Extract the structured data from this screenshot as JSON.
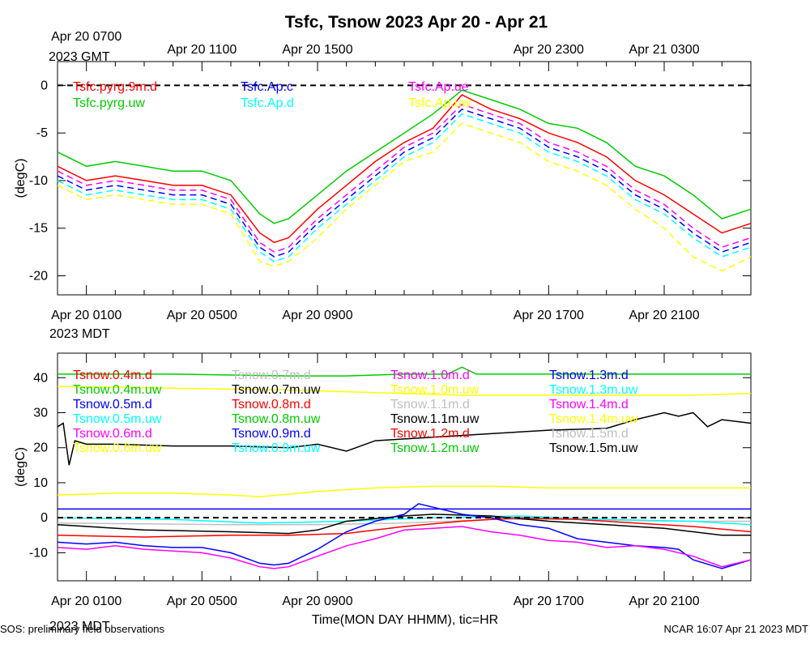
{
  "chart_data": {
    "type": "line",
    "title": "Tsfc, Tsnow 2023 Apr 20 - Apr 21",
    "xlabel": "Time(MON DAY HHMM), tic=HR",
    "footer_left": "SOS: preliminary field observations",
    "footer_right": "NCAR 16:07 Apr 21 2023 MDT",
    "gmt_zone_label": "2023 GMT",
    "mdt_zone_label": "2023 MDT",
    "gmt_ticks": [
      "Apr 20 0700",
      "Apr 20 1100",
      "Apr 20 1500",
      "Apr 20 2300",
      "Apr 21 0300"
    ],
    "mdt_ticks": [
      "Apr 20 0100",
      "Apr 20 0500",
      "Apr 20 0900",
      "Apr 20 1700",
      "Apr 20 2100"
    ],
    "x_hours": [
      0,
      4,
      8,
      16,
      20
    ],
    "xlim_hours": [
      -1,
      23
    ],
    "panels": [
      {
        "ylabel": "(degC)",
        "ylim": [
          -22,
          2.5
        ],
        "yticks": [
          0,
          -5,
          -10,
          -15,
          -20
        ],
        "ref_line": 0,
        "legend": [
          {
            "label": "Tsfc.pyrg.9m.d",
            "color": "#ff0000"
          },
          {
            "label": "Tsfc.pyrg.uw",
            "color": "#00cc00"
          },
          {
            "label": "Tsfc.Ap.c",
            "color": "#0000ff"
          },
          {
            "label": "Tsfc.Ap.d",
            "color": "#00ffff"
          },
          {
            "label": "Tsfc.Ap.ue",
            "color": "#ff00ff"
          },
          {
            "label": "Tsfc.Ap.uw",
            "color": "#ffff00"
          }
        ],
        "series": [
          {
            "name": "Tsfc.pyrg.uw",
            "color": "#00cc00",
            "dash": false,
            "x": [
              -1,
              0,
              1,
              2,
              3,
              4,
              5,
              6,
              6.5,
              7,
              8,
              9,
              10,
              11,
              12,
              13,
              14,
              15,
              16,
              17,
              18,
              19,
              20,
              21,
              22,
              23
            ],
            "y": [
              -7,
              -8.5,
              -8,
              -8.5,
              -9,
              -9,
              -10,
              -13.5,
              -14.5,
              -14,
              -11.5,
              -9,
              -7,
              -5,
              -3,
              -0.5,
              -1.5,
              -2.5,
              -4,
              -4.5,
              -6,
              -8.5,
              -9.5,
              -11.5,
              -14,
              -13
            ]
          },
          {
            "name": "Tsfc.pyrg.9m.d",
            "color": "#ff0000",
            "dash": false,
            "x": [
              -1,
              0,
              1,
              2,
              3,
              4,
              5,
              6,
              6.5,
              7,
              8,
              9,
              10,
              11,
              12,
              13,
              14,
              15,
              16,
              17,
              18,
              19,
              20,
              21,
              22,
              23
            ],
            "y": [
              -8.5,
              -10,
              -9.5,
              -10,
              -10.5,
              -10.5,
              -11.5,
              -15.5,
              -16.5,
              -16,
              -13,
              -10.5,
              -8,
              -6,
              -4.5,
              -1,
              -2.5,
              -3.5,
              -5,
              -6,
              -7.5,
              -10,
              -11.5,
              -13.5,
              -15.5,
              -14.5
            ]
          },
          {
            "name": "Tsfc.Ap.c",
            "color": "#0000ff",
            "dash": true,
            "x": [
              -1,
              0,
              1,
              2,
              3,
              4,
              5,
              6,
              6.5,
              7,
              8,
              9,
              10,
              11,
              12,
              13,
              14,
              15,
              16,
              17,
              18,
              19,
              20,
              21,
              22,
              23
            ],
            "y": [
              -9.5,
              -11,
              -10.5,
              -11,
              -11.5,
              -11.5,
              -12.5,
              -17,
              -18,
              -17.5,
              -14.5,
              -12,
              -9.5,
              -7,
              -5.5,
              -2.5,
              -3.5,
              -4.5,
              -6.5,
              -7.5,
              -9,
              -11.5,
              -13,
              -15.5,
              -17.5,
              -16.5
            ]
          },
          {
            "name": "Tsfc.Ap.ue",
            "color": "#ff00ff",
            "dash": true,
            "x": [
              -1,
              0,
              1,
              2,
              3,
              4,
              5,
              6,
              6.5,
              7,
              8,
              9,
              10,
              11,
              12,
              13,
              14,
              15,
              16,
              17,
              18,
              19,
              20,
              21,
              22,
              23
            ],
            "y": [
              -9,
              -10.5,
              -10,
              -10.5,
              -11,
              -11,
              -12,
              -16.5,
              -17.5,
              -17,
              -14,
              -11.5,
              -9,
              -6.5,
              -5,
              -2,
              -3,
              -4,
              -6,
              -7,
              -8.5,
              -11,
              -12.5,
              -15,
              -17,
              -16
            ]
          },
          {
            "name": "Tsfc.Ap.d",
            "color": "#00ffff",
            "dash": true,
            "x": [
              -1,
              0,
              1,
              2,
              3,
              4,
              5,
              6,
              6.5,
              7,
              8,
              9,
              10,
              11,
              12,
              13,
              14,
              15,
              16,
              17,
              18,
              19,
              20,
              21,
              22,
              23
            ],
            "y": [
              -10,
              -11.5,
              -11,
              -11.5,
              -12,
              -12,
              -13,
              -17.5,
              -18.5,
              -18,
              -15,
              -12.5,
              -10,
              -7.5,
              -6,
              -3,
              -4,
              -5,
              -7,
              -8,
              -9.5,
              -12,
              -13.5,
              -16,
              -18,
              -17
            ]
          },
          {
            "name": "Tsfc.Ap.uw",
            "color": "#ffff00",
            "dash": true,
            "x": [
              -1,
              0,
              1,
              2,
              3,
              4,
              5,
              6,
              6.5,
              7,
              8,
              9,
              10,
              11,
              12,
              13,
              14,
              15,
              16,
              17,
              18,
              19,
              20,
              21,
              22,
              23
            ],
            "y": [
              -10.5,
              -12,
              -11.5,
              -12,
              -12.5,
              -12.5,
              -13.5,
              -18.5,
              -19,
              -18.5,
              -16,
              -13,
              -10.5,
              -8,
              -7,
              -4,
              -5,
              -6,
              -8,
              -9,
              -10.5,
              -13,
              -15,
              -18,
              -19.5,
              -18
            ]
          }
        ]
      },
      {
        "ylabel": "(degC)",
        "ylim": [
          -18,
          47
        ],
        "yticks": [
          40,
          30,
          20,
          10,
          0,
          -10
        ],
        "ref_line": 0,
        "legend": [
          {
            "label": "Tsnow.0.4m.d",
            "color": "#ff0000"
          },
          {
            "label": "Tsnow.0.4m.uw",
            "color": "#00cc00"
          },
          {
            "label": "Tsnow.0.5m.d",
            "color": "#0000ff"
          },
          {
            "label": "Tsnow.0.5m.uw",
            "color": "#00ffff"
          },
          {
            "label": "Tsnow.0.6m.d",
            "color": "#ff00ff"
          },
          {
            "label": "Tsnow.0.6m.uw",
            "color": "#ffff00"
          },
          {
            "label": "Tsnow.0.7m.d",
            "color": "#c0c0c0"
          },
          {
            "label": "Tsnow.0.7m.uw",
            "color": "#000000"
          },
          {
            "label": "Tsnow.0.8m.d",
            "color": "#ff0000"
          },
          {
            "label": "Tsnow.0.8m.uw",
            "color": "#00cc00"
          },
          {
            "label": "Tsnow.0.9m.d",
            "color": "#0000ff"
          },
          {
            "label": "Tsnow.0.9m.uw",
            "color": "#00ffff"
          },
          {
            "label": "Tsnow.1.0m.d",
            "color": "#ff00ff"
          },
          {
            "label": "Tsnow.1.0m.uw",
            "color": "#ffff00"
          },
          {
            "label": "Tsnow.1.1m.d",
            "color": "#c0c0c0"
          },
          {
            "label": "Tsnow.1.1m.uw",
            "color": "#000000"
          },
          {
            "label": "Tsnow.1.2m.d",
            "color": "#ff0000"
          },
          {
            "label": "Tsnow.1.2m.uw",
            "color": "#00cc00"
          },
          {
            "label": "Tsnow.1.3m.d",
            "color": "#0000ff"
          },
          {
            "label": "Tsnow.1.3m.uw",
            "color": "#00ffff"
          },
          {
            "label": "Tsnow.1.4m.d",
            "color": "#ff00ff"
          },
          {
            "label": "Tsnow.1.4m.uw",
            "color": "#ffff00"
          },
          {
            "label": "Tsnow.1.5m.d",
            "color": "#c0c0c0"
          },
          {
            "label": "Tsnow.1.5m.uw",
            "color": "#000000"
          }
        ],
        "series": [
          {
            "name": "Tsnow.0.4m.uw",
            "color": "#00cc00",
            "dash": false,
            "x": [
              -1,
              3,
              7,
              9,
              11,
              12.5,
              13,
              13.5,
              16,
              19,
              23
            ],
            "y": [
              41,
              41,
              40.5,
              40.5,
              41,
              41,
              43,
              41,
              41,
              41,
              41
            ]
          },
          {
            "name": "Tsnow.1.0m.uw",
            "color": "#ffff00",
            "dash": false,
            "x": [
              -1,
              3,
              7,
              9,
              11,
              13,
              15,
              17,
              19,
              21,
              23
            ],
            "y": [
              37.5,
              37,
              36.5,
              36,
              35.5,
              35,
              35,
              35,
              35,
              35,
              35.5
            ]
          },
          {
            "name": "Tsnow.1.5m.uw",
            "color": "#000000",
            "dash": false,
            "x": [
              -1,
              -0.8,
              -0.6,
              -0.4,
              0,
              1,
              3,
              5,
              7,
              8,
              9,
              10,
              11,
              12,
              14,
              16,
              18,
              19,
              20,
              20.5,
              21,
              21.5,
              22,
              23
            ],
            "y": [
              26,
              27,
              15,
              22,
              21,
              21,
              20.5,
              20.5,
              20,
              21,
              19,
              22,
              22.5,
              23,
              24,
              25,
              25.5,
              28,
              30,
              29,
              30,
              26,
              28,
              27
            ]
          },
          {
            "name": "Tsnow.0.6m.uw",
            "color": "#ffff00",
            "dash": false,
            "x": [
              -1,
              1,
              3,
              5,
              6,
              8,
              10,
              12,
              14,
              16,
              18,
              20,
              23
            ],
            "y": [
              6.5,
              7,
              7,
              6.5,
              6,
              7.5,
              8.5,
              9,
              9,
              8.5,
              8.5,
              8.5,
              8.5
            ]
          },
          {
            "name": "Tsnow.1.3m.d",
            "color": "#0000ff",
            "dash": false,
            "x": [
              -1,
              23
            ],
            "y": [
              2.5,
              2.5
            ]
          },
          {
            "name": "Tsnow.0.7m.d",
            "color": "#c0c0c0",
            "dash": false,
            "x": [
              -1,
              5,
              8,
              11,
              14,
              17,
              20,
              23
            ],
            "y": [
              -1.5,
              -2,
              -2,
              -1.5,
              -0.5,
              -0.5,
              -1,
              -1
            ]
          },
          {
            "name": "Tsnow.1.3m.uw",
            "color": "#00ffff",
            "dash": false,
            "x": [
              -1,
              3,
              6,
              9,
              12,
              15,
              18,
              21,
              23
            ],
            "y": [
              0,
              -0.5,
              -1.5,
              -1,
              0,
              0.5,
              -0.5,
              -1,
              -2
            ]
          },
          {
            "name": "Tsnow.0.7m.uw",
            "color": "#000000",
            "dash": false,
            "x": [
              -1,
              2,
              5,
              7,
              8,
              9,
              11,
              12,
              14,
              16,
              18,
              20,
              22,
              23
            ],
            "y": [
              -2,
              -3.5,
              -4,
              -4.5,
              -3.5,
              -1,
              0.5,
              1,
              0.5,
              -1,
              -2,
              -3,
              -5,
              -5
            ]
          },
          {
            "name": "Tsnow.0.4m.d",
            "color": "#ff0000",
            "dash": false,
            "x": [
              -1,
              2,
              5,
              7,
              9,
              11,
              13,
              15,
              17,
              19,
              21,
              23
            ],
            "y": [
              -5,
              -5.5,
              -5,
              -5,
              -4.5,
              -2.5,
              -1,
              0,
              -0.5,
              -1.5,
              -2.5,
              -4
            ]
          },
          {
            "name": "Tsnow.0.5m.d",
            "color": "#0000ff",
            "dash": false,
            "x": [
              -1,
              0,
              1,
              2,
              3,
              4,
              5,
              6,
              6.5,
              7,
              8,
              9,
              10,
              11,
              11.5,
              12,
              13,
              14,
              15,
              16,
              17,
              18,
              19,
              20,
              20.5,
              21,
              22,
              23
            ],
            "y": [
              -7,
              -7.5,
              -7,
              -8,
              -8.5,
              -8.5,
              -10,
              -13,
              -13.5,
              -13,
              -9,
              -4,
              -1,
              1,
              4,
              3,
              1,
              0,
              -2,
              -3,
              -6,
              -7,
              -8,
              -8.5,
              -9,
              -12,
              -14.5,
              -12
            ]
          },
          {
            "name": "Tsnow.0.6m.d",
            "color": "#ff00ff",
            "dash": false,
            "x": [
              -1,
              0,
              1,
              2,
              3,
              4,
              5,
              6,
              6.5,
              7,
              8,
              9,
              10,
              11,
              12,
              13,
              14,
              15,
              16,
              17,
              18,
              19,
              20,
              21,
              22,
              23
            ],
            "y": [
              -8.5,
              -9,
              -8,
              -9,
              -9.5,
              -10,
              -11.5,
              -14,
              -14.5,
              -14,
              -11,
              -8,
              -6,
              -3.5,
              -3,
              -2.5,
              -4,
              -5,
              -6.5,
              -7,
              -8.5,
              -8,
              -9,
              -11,
              -14,
              -12
            ]
          }
        ]
      }
    ]
  }
}
